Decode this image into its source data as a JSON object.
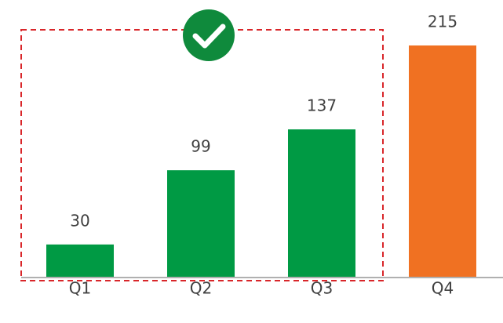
{
  "chart_data": {
    "type": "bar",
    "categories": [
      "Q1",
      "Q2",
      "Q3",
      "Q4"
    ],
    "values": [
      30,
      99,
      137,
      215
    ],
    "colors": [
      "#009a44",
      "#009a44",
      "#009a44",
      "#f07122"
    ],
    "grid": false
  }
}
